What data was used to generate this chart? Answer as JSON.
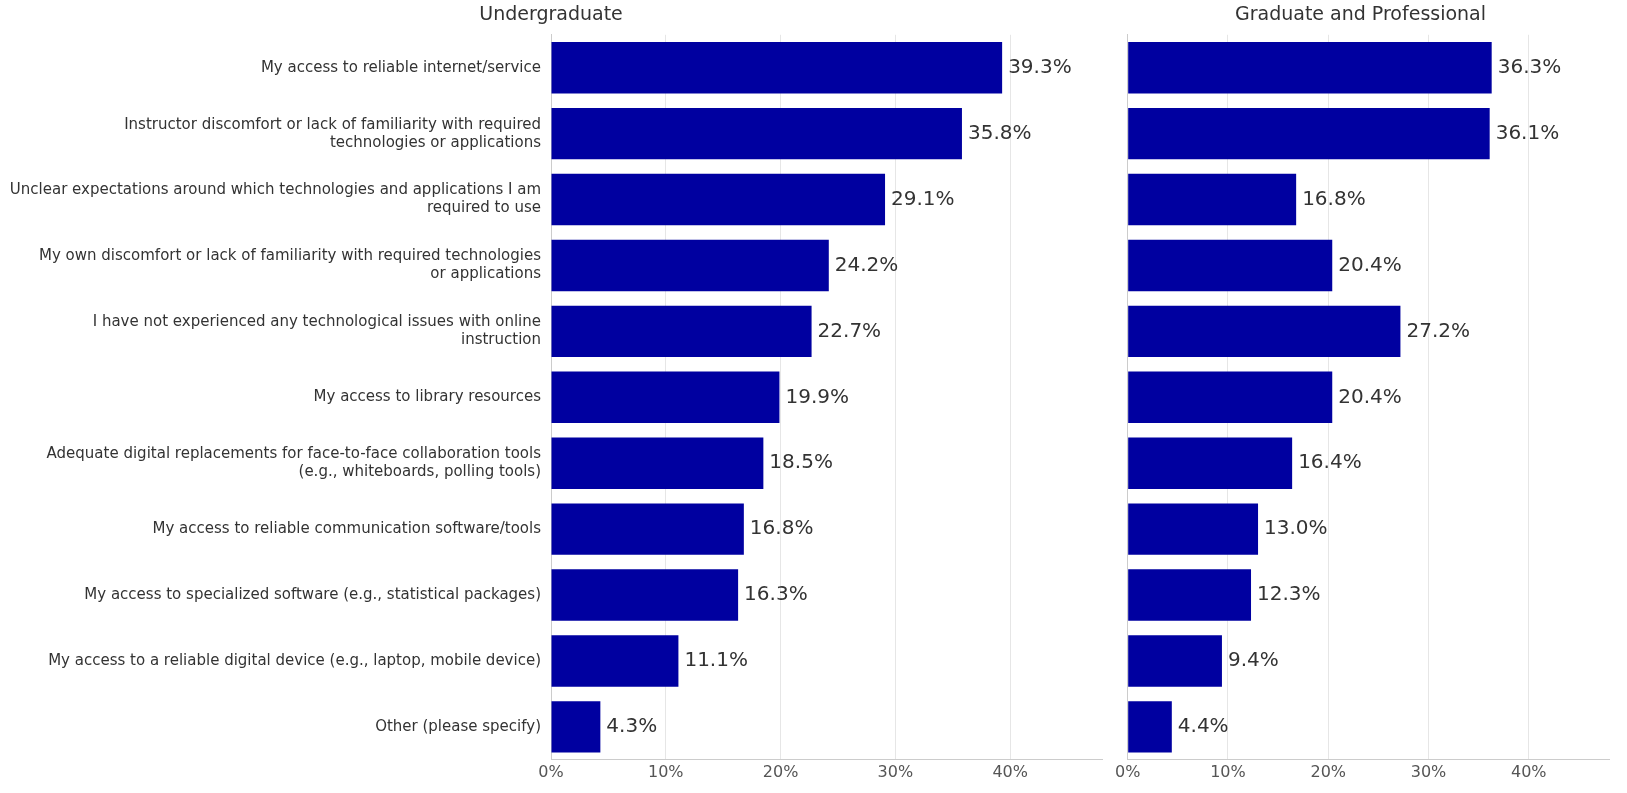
{
  "chart_data": [
    {
      "type": "bar",
      "orientation": "horizontal",
      "title": "Undergraduate",
      "categories": [
        "My access to reliable internet/service",
        "Instructor discomfort or lack of familiarity with required technologies or applications",
        "Unclear expectations around which technologies and applications I am required to use",
        "My own discomfort or lack of familiarity with required technologies or applications",
        "I have not experienced any technological issues with online instruction",
        "My access to library resources",
        "Adequate digital replacements for face-to-face collaboration tools (e.g., whiteboards, polling tools)",
        "My access to reliable communication software/tools",
        "My access to specialized software (e.g., statistical packages)",
        "My access to a reliable digital device (e.g., laptop, mobile device)",
        "Other (please specify)"
      ],
      "values": [
        39.3,
        35.8,
        29.1,
        24.2,
        22.7,
        19.9,
        18.5,
        16.8,
        16.3,
        11.1,
        4.3
      ],
      "value_labels": [
        "39.3%",
        "35.8%",
        "29.1%",
        "24.2%",
        "22.7%",
        "19.9%",
        "18.5%",
        "16.8%",
        "16.3%",
        "11.1%",
        "4.3%"
      ],
      "color": "#0000a0",
      "xlim": [
        0,
        48
      ],
      "xticks": [
        {
          "value": 0,
          "label": "0%"
        },
        {
          "value": 10,
          "label": "10%"
        },
        {
          "value": 20,
          "label": "20%"
        },
        {
          "value": 30,
          "label": "30%"
        },
        {
          "value": 40,
          "label": "40%"
        }
      ],
      "grid": "x"
    },
    {
      "type": "bar",
      "orientation": "horizontal",
      "title": "Graduate and Professional",
      "categories": [
        null,
        null,
        null,
        null,
        null,
        null,
        null,
        null,
        null,
        null,
        null
      ],
      "values": [
        36.3,
        36.1,
        16.8,
        20.4,
        27.2,
        20.4,
        16.4,
        13.0,
        12.3,
        9.4,
        4.4
      ],
      "value_labels": [
        "36.3%",
        "36.1%",
        "16.8%",
        "20.4%",
        "27.2%",
        "20.4%",
        "16.4%",
        "13.0%",
        "12.3%",
        "9.4%",
        "4.4%"
      ],
      "color": "#0000a0",
      "xlim": [
        0,
        48
      ],
      "xticks": [
        {
          "value": 0,
          "label": "0%"
        },
        {
          "value": 10,
          "label": "10%"
        },
        {
          "value": 20,
          "label": "20%"
        },
        {
          "value": 30,
          "label": "30%"
        },
        {
          "value": 40,
          "label": "40%"
        }
      ],
      "grid": "x",
      "tick_labels": "x"
    }
  ]
}
